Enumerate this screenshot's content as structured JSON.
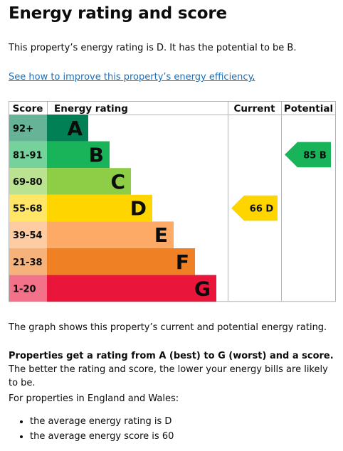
{
  "page": {
    "title": "Energy rating and score",
    "lead": "This property’s energy rating is D. It has the potential to be B.",
    "link_text": "See how to improve this property’s energy efficiency",
    "link_suffix": ".",
    "graph_note": "The graph shows this property’s current and potential energy rating.",
    "ratings_bold": "Properties get a rating from A (best) to G (worst) and a score.",
    "ratings_rest": " The better the rating and score, the lower your energy bills are likely to be.",
    "region_intro": "For properties in England and Wales:",
    "averages": [
      "the average energy rating is D",
      "the average energy score is 60"
    ]
  },
  "chart_data": {
    "type": "bar",
    "headers": [
      "Score",
      "Energy rating",
      "Current",
      "Potential"
    ],
    "bands": [
      {
        "letter": "A",
        "range": "92+",
        "min": 92,
        "max": 100,
        "color": "#008054",
        "light": "#66b398"
      },
      {
        "letter": "B",
        "range": "81-91",
        "min": 81,
        "max": 91,
        "color": "#19b459",
        "light": "#75d29b"
      },
      {
        "letter": "C",
        "range": "69-80",
        "min": 69,
        "max": 80,
        "color": "#8dce46",
        "light": "#bbe290"
      },
      {
        "letter": "D",
        "range": "55-68",
        "min": 55,
        "max": 68,
        "color": "#ffd500",
        "light": "#ffe666"
      },
      {
        "letter": "E",
        "range": "39-54",
        "min": 39,
        "max": 54,
        "color": "#fcaa65",
        "light": "#fdcca3"
      },
      {
        "letter": "F",
        "range": "21-38",
        "min": 21,
        "max": 38,
        "color": "#ef8023",
        "light": "#f5b37b"
      },
      {
        "letter": "G",
        "range": "1-20",
        "min": 1,
        "max": 20,
        "color": "#e9153b",
        "light": "#f27389"
      }
    ],
    "current": {
      "score": 66,
      "letter": "D",
      "label": "66  D"
    },
    "potential": {
      "score": 85,
      "letter": "B",
      "label": "85  B"
    }
  }
}
